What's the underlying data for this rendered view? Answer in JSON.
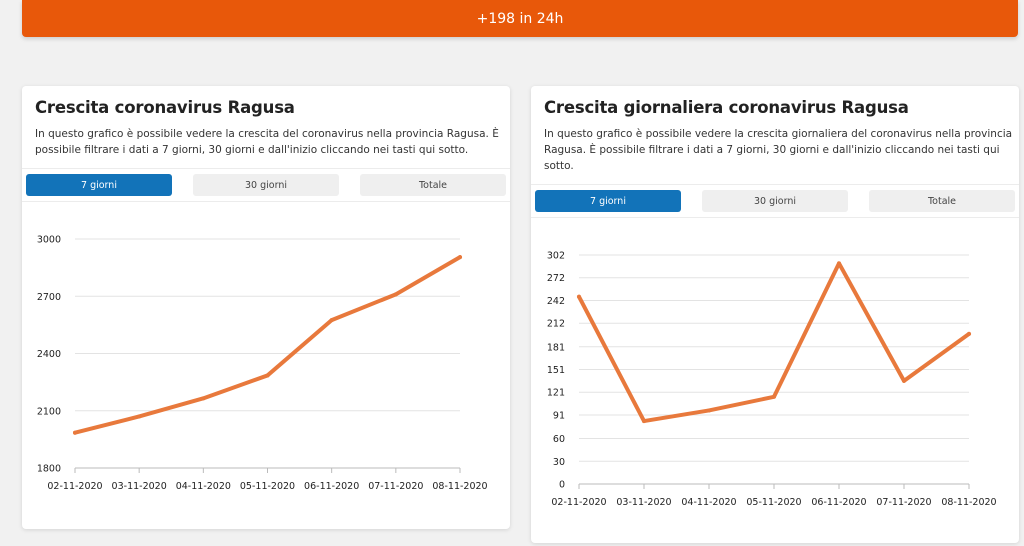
{
  "banner": {
    "text": "+198 in 24h"
  },
  "cards": [
    {
      "title": "Crescita coronavirus Ragusa",
      "description": "In questo grafico è possibile vedere la crescita del coronavirus nella provincia Ragusa. È possibile filtrare i dati a 7 giorni, 30 giorni e dall'inizio cliccando nei tasti qui sotto.",
      "tabs": [
        {
          "label": "7 giorni",
          "active": true
        },
        {
          "label": "30 giorni",
          "active": false
        },
        {
          "label": "Totale",
          "active": false
        }
      ]
    },
    {
      "title": "Crescita giornaliera coronavirus Ragusa",
      "description": "In questo grafico è possibile vedere la crescita giornaliera del coronavirus nella provincia Ragusa. È possibile filtrare i dati a 7 giorni, 30 giorni e dall'inizio cliccando nei tasti qui sotto.",
      "tabs": [
        {
          "label": "7 giorni",
          "active": true
        },
        {
          "label": "30 giorni",
          "active": false
        },
        {
          "label": "Totale",
          "active": false
        }
      ]
    }
  ],
  "colors": {
    "accent": "#e8580a",
    "line": "#e8793c",
    "tab_active": "#1273b9",
    "tab_inactive": "#efefef"
  },
  "chart_data": [
    {
      "type": "line",
      "title": "",
      "categories": [
        "02-11-2020",
        "03-11-2020",
        "04-11-2020",
        "05-11-2020",
        "06-11-2020",
        "07-11-2020",
        "08-11-2020"
      ],
      "values": [
        1985,
        2070,
        2165,
        2285,
        2575,
        2710,
        2905
      ],
      "yticks": [
        1800,
        2100,
        2400,
        2700,
        3000
      ],
      "ylim": [
        1800,
        3000
      ],
      "grid": true,
      "xlabel": "",
      "ylabel": ""
    },
    {
      "type": "line",
      "title": "",
      "categories": [
        "02-11-2020",
        "03-11-2020",
        "04-11-2020",
        "05-11-2020",
        "06-11-2020",
        "07-11-2020",
        "08-11-2020"
      ],
      "values": [
        247,
        83,
        97,
        115,
        291,
        136,
        198
      ],
      "yticks": [
        0,
        30,
        60,
        91,
        121,
        151,
        181,
        212,
        242,
        272,
        302
      ],
      "ylim": [
        0,
        302
      ],
      "grid": true,
      "xlabel": "",
      "ylabel": ""
    }
  ]
}
